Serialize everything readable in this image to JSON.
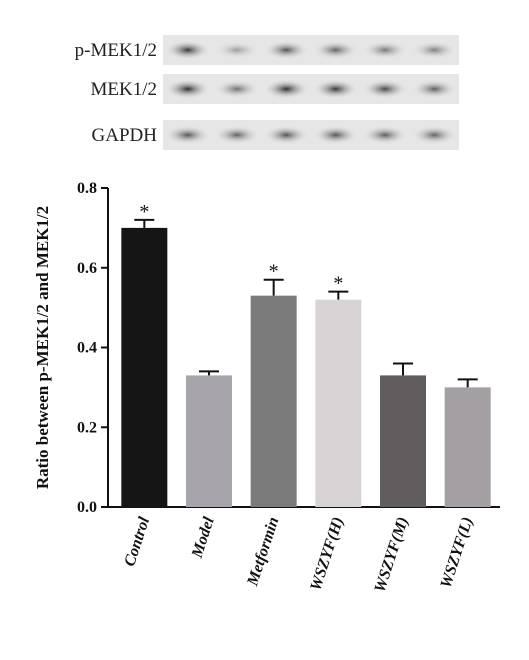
{
  "blots": [
    {
      "label": "p-MEK1/2",
      "intensities": [
        0.95,
        0.55,
        0.85,
        0.8,
        0.72,
        0.68
      ]
    },
    {
      "label": "MEK1/2",
      "intensities": [
        0.98,
        0.75,
        0.98,
        0.95,
        0.9,
        0.82
      ]
    },
    {
      "label": "GAPDH",
      "intensities": [
        0.85,
        0.8,
        0.85,
        0.85,
        0.82,
        0.8
      ]
    }
  ],
  "chart_data": {
    "type": "bar",
    "categories": [
      "Control",
      "Model",
      "Metformin",
      "WSZYF(H)",
      "WSZYF(M)",
      "WSZYF(L)"
    ],
    "values": [
      0.7,
      0.33,
      0.53,
      0.52,
      0.33,
      0.3
    ],
    "errors": [
      0.02,
      0.01,
      0.04,
      0.02,
      0.03,
      0.02
    ],
    "significance": [
      "*",
      "",
      "*",
      "*",
      "",
      ""
    ],
    "bar_colors": [
      "#151515",
      "#a8a4ab",
      "#7c7b7b",
      "#d8d4d6",
      "#615c5e",
      "#a39fa2"
    ],
    "ylabel": "Ratio between p-MEK1/2 and MEK1/2",
    "xlabel": "",
    "ylim": [
      0,
      0.8
    ],
    "yticks": [
      "0.0",
      "0.2",
      "0.4",
      "0.6",
      "0.8"
    ],
    "grid": false
  }
}
